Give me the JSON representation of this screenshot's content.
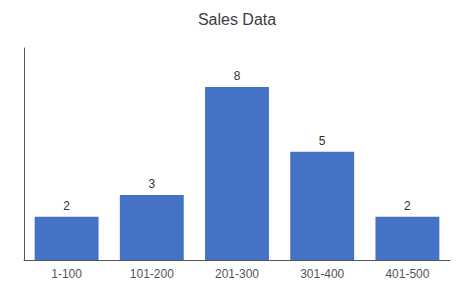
{
  "chart_data": {
    "type": "bar",
    "title": "Sales Data",
    "categories": [
      "1-100",
      "101-200",
      "201-300",
      "301-400",
      "401-500"
    ],
    "values": [
      2,
      3,
      8,
      5,
      2
    ],
    "color": "#4472C4",
    "ylim": [
      0,
      9.8
    ],
    "grid": false,
    "data_labels": true,
    "tick_labels": "x"
  }
}
